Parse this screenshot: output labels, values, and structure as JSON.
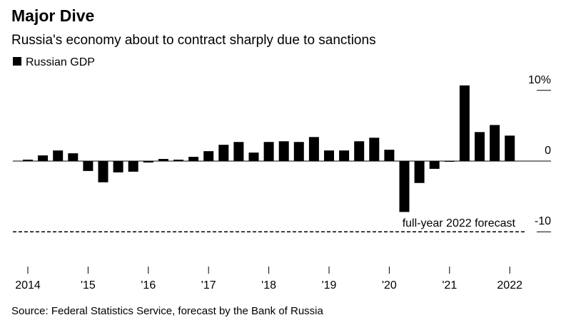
{
  "chart_data": {
    "type": "bar",
    "title": "Major Dive",
    "subtitle": "Russia's economy about to contract sharply due to sanctions",
    "source": "Source: Federal Statistics Service, forecast by the Bank of Russia",
    "series": [
      {
        "name": "Russian GDP",
        "color": "#000000",
        "values": [
          0.2,
          0.8,
          1.5,
          1.1,
          -1.4,
          -3.0,
          -1.6,
          -1.5,
          -0.2,
          0.3,
          0.2,
          0.6,
          1.4,
          2.3,
          2.7,
          1.2,
          2.7,
          2.8,
          2.7,
          3.4,
          1.5,
          1.5,
          2.8,
          3.3,
          1.6,
          -7.2,
          -3.1,
          -1.1,
          -0.1,
          10.7,
          4.1,
          5.1,
          3.6
        ]
      }
    ],
    "categories": [
      "2014",
      null,
      null,
      null,
      "'15",
      null,
      null,
      null,
      "'16",
      null,
      null,
      null,
      "'17",
      null,
      null,
      null,
      "'18",
      null,
      null,
      null,
      "'19",
      null,
      null,
      null,
      "'20",
      null,
      null,
      null,
      "'21",
      null,
      null,
      null,
      "2022"
    ],
    "ylim": [
      -12.5,
      12.5
    ],
    "yticks": [
      {
        "value": 10,
        "label": "10%"
      },
      0,
      -10
    ],
    "forecast": {
      "value": -10,
      "label": "full-year 2022 forecast"
    }
  }
}
